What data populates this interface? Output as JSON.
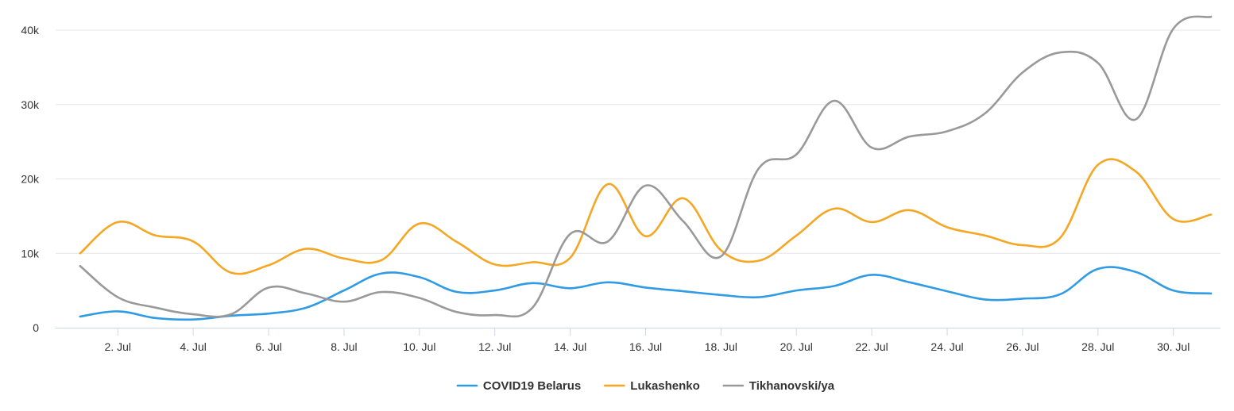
{
  "chart_data": {
    "type": "line",
    "title": "",
    "xlabel": "",
    "ylabel": "",
    "ylim": [
      0,
      40000
    ],
    "yticks": [
      0,
      10000,
      20000,
      30000,
      40000
    ],
    "ytick_labels": [
      "0",
      "10k",
      "20k",
      "30k",
      "40k"
    ],
    "x": [
      1,
      2,
      3,
      4,
      5,
      6,
      7,
      8,
      9,
      10,
      11,
      12,
      13,
      14,
      15,
      16,
      17,
      18,
      19,
      20,
      21,
      22,
      23,
      24,
      25,
      26,
      27,
      28,
      29,
      30,
      31
    ],
    "xticks": [
      2,
      4,
      6,
      8,
      10,
      12,
      14,
      16,
      18,
      20,
      22,
      24,
      26,
      28,
      30
    ],
    "xtick_labels": [
      "2. Jul",
      "4. Jul",
      "6. Jul",
      "8. Jul",
      "10. Jul",
      "12. Jul",
      "14. Jul",
      "16. Jul",
      "18. Jul",
      "20. Jul",
      "22. Jul",
      "24. Jul",
      "26. Jul",
      "28. Jul",
      "30. Jul"
    ],
    "grid": true,
    "legend_position": "bottom",
    "series": [
      {
        "name": "COVID19 Belarus",
        "color": "#2f9be4",
        "values": [
          1500,
          2200,
          1300,
          1100,
          1600,
          1900,
          2700,
          5000,
          7300,
          6800,
          4800,
          5000,
          6000,
          5300,
          6100,
          5400,
          4900,
          4400,
          4100,
          5000,
          5600,
          7100,
          6100,
          4900,
          3800,
          3900,
          4500,
          7900,
          7500,
          5000,
          4600
        ]
      },
      {
        "name": "Lukashenko",
        "color": "#f5a623",
        "values": [
          10000,
          14200,
          12400,
          11600,
          7400,
          8400,
          10600,
          9300,
          9100,
          14000,
          11500,
          8500,
          8800,
          9400,
          19300,
          12300,
          17400,
          10400,
          9000,
          12400,
          16000,
          14200,
          15800,
          13500,
          12400,
          11100,
          12100,
          21900,
          21000,
          14600,
          15200
        ]
      },
      {
        "name": "Tikhanovski/ya",
        "color": "#999999",
        "values": [
          8300,
          4100,
          2700,
          1800,
          1800,
          5400,
          4600,
          3500,
          4800,
          4000,
          2100,
          1700,
          2700,
          12600,
          11600,
          19100,
          14300,
          9600,
          21400,
          23300,
          30500,
          24200,
          25700,
          26400,
          28800,
          34300,
          37000,
          35600,
          28000,
          40200,
          41800
        ]
      }
    ]
  }
}
